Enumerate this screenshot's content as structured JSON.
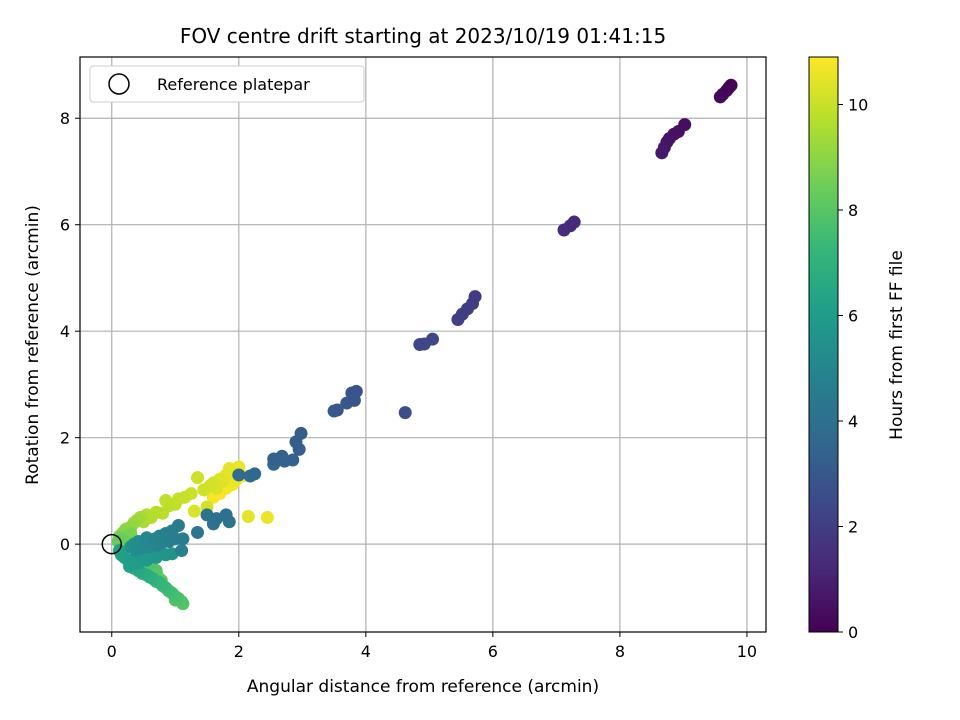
{
  "chart_data": {
    "type": "scatter",
    "title": "FOV centre drift starting at 2023/10/19 01:41:15",
    "xlabel": "Angular distance from reference (arcmin)",
    "ylabel": "Rotation from reference (arcmin)",
    "xlim": [
      -0.5,
      10.3
    ],
    "ylim": [
      -1.65,
      9.15
    ],
    "xticks": [
      0,
      2,
      4,
      6,
      8,
      10
    ],
    "yticks": [
      0,
      2,
      4,
      6,
      8
    ],
    "xtick_labels": [
      "0",
      "2",
      "4",
      "6",
      "8",
      "10"
    ],
    "ytick_labels": [
      "0",
      "2",
      "4",
      "6",
      "8"
    ],
    "grid": true,
    "legend": {
      "entry": "Reference platepar",
      "placement": "top-left"
    },
    "reference_point": {
      "x": 0,
      "y": 0
    },
    "colorbar": {
      "label": "Hours from first FF file",
      "range": [
        0,
        10.9
      ],
      "ticks": [
        0,
        2,
        4,
        6,
        8,
        10
      ],
      "tick_labels": [
        "0",
        "2",
        "4",
        "6",
        "8",
        "10"
      ],
      "colormap": "viridis"
    },
    "points": [
      [
        9.75,
        8.62,
        0.05
      ],
      [
        9.72,
        8.58,
        0.1
      ],
      [
        9.68,
        8.52,
        0.15
      ],
      [
        9.62,
        8.45,
        0.2
      ],
      [
        9.58,
        8.4,
        0.25
      ],
      [
        9.02,
        7.88,
        0.4
      ],
      [
        8.92,
        7.75,
        0.5
      ],
      [
        8.85,
        7.7,
        0.55
      ],
      [
        8.78,
        7.62,
        0.6
      ],
      [
        8.74,
        7.55,
        0.65
      ],
      [
        8.7,
        7.45,
        0.7
      ],
      [
        8.66,
        7.35,
        0.75
      ],
      [
        7.28,
        6.05,
        1.3
      ],
      [
        7.22,
        5.98,
        1.35
      ],
      [
        7.12,
        5.9,
        1.4
      ],
      [
        5.72,
        4.65,
        1.9
      ],
      [
        5.68,
        4.52,
        1.95
      ],
      [
        5.6,
        4.42,
        2.0
      ],
      [
        5.52,
        4.32,
        2.05
      ],
      [
        5.45,
        4.22,
        2.1
      ],
      [
        5.05,
        3.85,
        2.3
      ],
      [
        4.92,
        3.76,
        2.35
      ],
      [
        4.85,
        3.75,
        2.4
      ],
      [
        4.62,
        2.47,
        2.6
      ],
      [
        3.85,
        2.87,
        2.8
      ],
      [
        3.78,
        2.84,
        2.85
      ],
      [
        3.82,
        2.7,
        2.9
      ],
      [
        3.7,
        2.65,
        2.95
      ],
      [
        3.55,
        2.52,
        3.0
      ],
      [
        3.5,
        2.5,
        3.05
      ],
      [
        2.98,
        2.08,
        3.2
      ],
      [
        2.9,
        1.92,
        3.25
      ],
      [
        2.95,
        1.78,
        3.3
      ],
      [
        2.85,
        1.58,
        3.35
      ],
      [
        2.68,
        1.65,
        3.4
      ],
      [
        2.55,
        1.6,
        3.45
      ],
      [
        2.72,
        1.56,
        3.5
      ],
      [
        2.55,
        1.5,
        3.55
      ],
      [
        2.25,
        1.32,
        3.7
      ],
      [
        2.18,
        1.28,
        3.75
      ],
      [
        2.0,
        1.3,
        3.8
      ],
      [
        1.8,
        0.55,
        4.0
      ],
      [
        1.65,
        0.48,
        4.05
      ],
      [
        1.6,
        0.38,
        4.1
      ],
      [
        1.5,
        0.55,
        4.15
      ],
      [
        1.85,
        0.42,
        4.2
      ],
      [
        1.35,
        0.22,
        4.3
      ],
      [
        1.12,
        0.1,
        4.5
      ],
      [
        1.05,
        0.35,
        4.55
      ],
      [
        1.0,
        0.1,
        4.6
      ],
      [
        0.95,
        0.25,
        4.65
      ],
      [
        0.9,
        0.05,
        4.7
      ],
      [
        1.1,
        -0.12,
        4.75
      ],
      [
        0.85,
        0.2,
        4.8
      ],
      [
        0.8,
        0.05,
        4.85
      ],
      [
        0.75,
        0.15,
        4.9
      ],
      [
        0.72,
        -0.02,
        4.95
      ],
      [
        0.68,
        0.1,
        5.0
      ],
      [
        0.62,
        0.05,
        5.05
      ],
      [
        0.58,
        -0.05,
        5.1
      ],
      [
        0.55,
        0.12,
        5.15
      ],
      [
        0.5,
        0.0,
        5.2
      ],
      [
        0.45,
        -0.08,
        5.25
      ],
      [
        0.42,
        0.05,
        5.3
      ],
      [
        0.38,
        -0.12,
        5.35
      ],
      [
        0.35,
        0.0,
        5.4
      ],
      [
        0.3,
        -0.05,
        5.45
      ],
      [
        0.95,
        -0.18,
        5.6
      ],
      [
        0.85,
        -0.2,
        5.65
      ],
      [
        0.78,
        -0.15,
        5.7
      ],
      [
        0.7,
        -0.25,
        5.75
      ],
      [
        0.62,
        -0.2,
        5.8
      ],
      [
        0.55,
        -0.3,
        5.85
      ],
      [
        0.48,
        -0.25,
        5.9
      ],
      [
        0.42,
        -0.35,
        5.95
      ],
      [
        0.35,
        -0.28,
        6.0
      ],
      [
        0.3,
        -0.38,
        6.05
      ],
      [
        0.25,
        -0.3,
        6.1
      ],
      [
        0.2,
        -0.25,
        6.15
      ],
      [
        0.15,
        -0.2,
        6.2
      ],
      [
        0.12,
        -0.12,
        6.25
      ],
      [
        0.28,
        -0.42,
        6.4
      ],
      [
        0.35,
        -0.45,
        6.5
      ],
      [
        0.42,
        -0.5,
        6.6
      ],
      [
        0.48,
        -0.55,
        6.7
      ],
      [
        0.55,
        -0.58,
        6.8
      ],
      [
        0.6,
        -0.62,
        6.9
      ],
      [
        0.65,
        -0.65,
        7.0
      ],
      [
        0.7,
        -0.7,
        7.1
      ],
      [
        0.75,
        -0.72,
        7.2
      ],
      [
        0.8,
        -0.78,
        7.3
      ],
      [
        0.85,
        -0.82,
        7.4
      ],
      [
        0.9,
        -0.88,
        7.5
      ],
      [
        0.95,
        -0.92,
        7.6
      ],
      [
        1.0,
        -0.98,
        7.7
      ],
      [
        1.05,
        -1.02,
        7.8
      ],
      [
        1.1,
        -1.08,
        7.9
      ],
      [
        1.12,
        -1.12,
        8.0
      ],
      [
        1.0,
        -1.05,
        7.95
      ],
      [
        0.55,
        -0.3,
        7.85
      ],
      [
        0.6,
        -0.38,
        7.9
      ],
      [
        0.65,
        -0.45,
        7.95
      ],
      [
        0.7,
        -0.5,
        8.0
      ],
      [
        0.72,
        -0.6,
        8.05
      ],
      [
        0.78,
        -0.68,
        8.1
      ],
      [
        0.6,
        -0.55,
        8.0
      ],
      [
        0.5,
        -0.4,
        7.9
      ],
      [
        0.1,
        0.05,
        8.3
      ],
      [
        0.15,
        0.1,
        8.4
      ],
      [
        0.2,
        0.05,
        8.5
      ],
      [
        0.25,
        0.15,
        8.6
      ],
      [
        0.3,
        0.2,
        8.7
      ],
      [
        0.12,
        0.15,
        8.8
      ],
      [
        0.18,
        0.22,
        8.9
      ],
      [
        0.22,
        0.28,
        9.0
      ],
      [
        0.3,
        0.32,
        9.1
      ],
      [
        0.35,
        0.4,
        9.2
      ],
      [
        0.4,
        0.45,
        9.3
      ],
      [
        0.45,
        0.5,
        9.4
      ],
      [
        0.5,
        0.42,
        9.5
      ],
      [
        0.55,
        0.55,
        9.6
      ],
      [
        0.62,
        0.5,
        9.65
      ],
      [
        0.7,
        0.6,
        9.7
      ],
      [
        0.8,
        0.58,
        9.75
      ],
      [
        0.9,
        0.72,
        9.8
      ],
      [
        0.85,
        0.82,
        9.85
      ],
      [
        1.0,
        0.75,
        9.9
      ],
      [
        1.05,
        0.85,
        9.95
      ],
      [
        1.15,
        0.88,
        10.0
      ],
      [
        1.25,
        0.95,
        10.05
      ],
      [
        1.35,
        1.25,
        10.1
      ],
      [
        1.45,
        1.02,
        10.15
      ],
      [
        1.55,
        1.1,
        10.2
      ],
      [
        1.6,
        1.15,
        10.25
      ],
      [
        1.65,
        1.05,
        10.3
      ],
      [
        1.7,
        1.22,
        10.35
      ],
      [
        1.75,
        1.18,
        10.4
      ],
      [
        1.8,
        1.3,
        10.45
      ],
      [
        1.85,
        1.42,
        10.5
      ],
      [
        1.9,
        1.35,
        10.55
      ],
      [
        1.95,
        1.2,
        10.6
      ],
      [
        2.0,
        1.45,
        10.65
      ],
      [
        2.05,
        1.28,
        10.7
      ],
      [
        1.9,
        1.12,
        10.72
      ],
      [
        1.8,
        1.05,
        10.75
      ],
      [
        1.7,
        0.95,
        10.78
      ],
      [
        1.6,
        0.88,
        10.8
      ],
      [
        2.15,
        0.52,
        10.5
      ],
      [
        2.45,
        0.5,
        10.6
      ],
      [
        1.3,
        0.62,
        10.3
      ],
      [
        1.5,
        0.7,
        10.2
      ]
    ]
  }
}
